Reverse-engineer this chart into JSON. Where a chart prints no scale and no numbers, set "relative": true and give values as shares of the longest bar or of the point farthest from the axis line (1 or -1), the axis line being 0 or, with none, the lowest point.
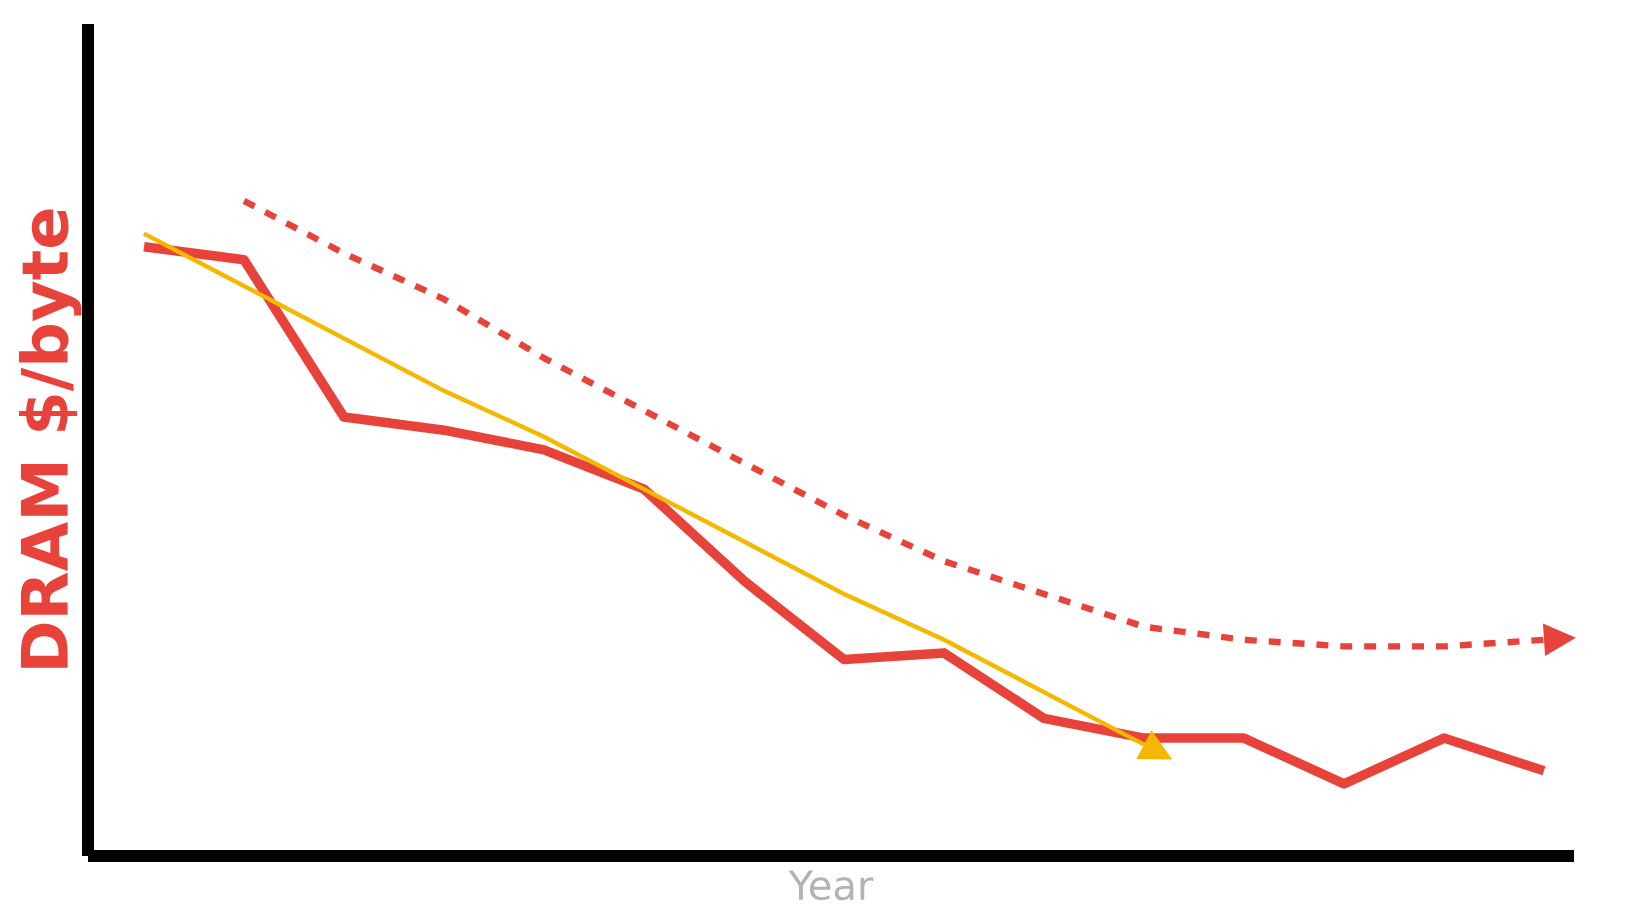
{
  "chart_data": {
    "type": "line",
    "relative": true,
    "xlabel": "Year",
    "ylabel": "DRAM $/byte",
    "categories": [
      null,
      null,
      null,
      null,
      null,
      null,
      null,
      null,
      null,
      null,
      null,
      null,
      null,
      null,
      null
    ],
    "series": [
      {
        "color": "#e8433a",
        "line_style": "solid",
        "values": [
          0.93,
          0.91,
          0.67,
          0.65,
          0.62,
          0.56,
          0.42,
          0.3,
          0.31,
          0.21,
          0.18,
          0.18,
          0.11,
          0.18,
          0.13
        ]
      },
      {
        "color": "#e8433a",
        "line_style": "dashed",
        "values": [
          null,
          1,
          0.92,
          0.85,
          0.76,
          0.68,
          0.6,
          0.52,
          0.45,
          0.4,
          0.35,
          0.33,
          0.32,
          0.32,
          0.33
        ]
      },
      {
        "color": "#f5b800",
        "line_style": "solid",
        "values": [
          0.95,
          0.87,
          0.79,
          0.71,
          0.64,
          0.56,
          0.48,
          0.4,
          0.33,
          0.25,
          0.17,
          null,
          null,
          null,
          null
        ]
      }
    ]
  }
}
